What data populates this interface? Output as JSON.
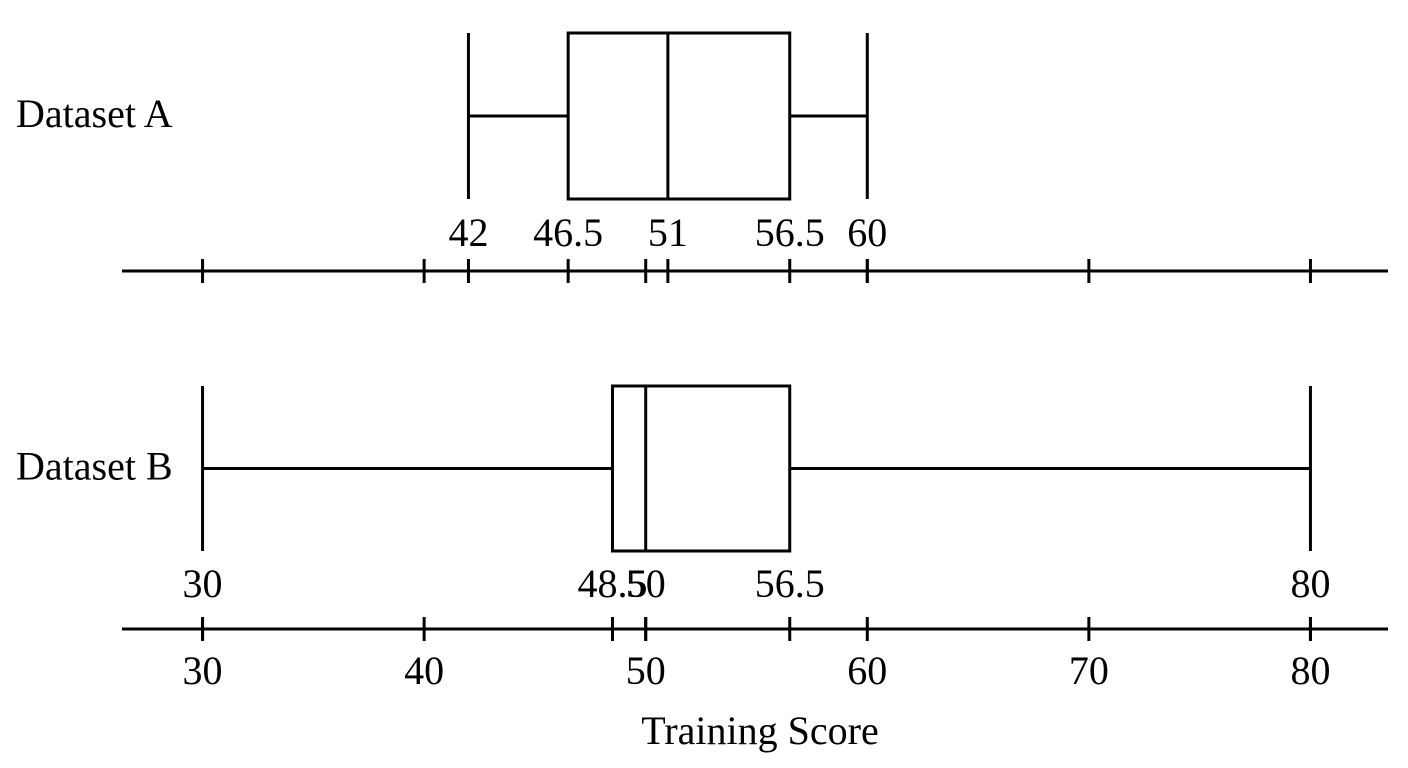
{
  "chart_data": {
    "type": "box",
    "xlabel": "Training Score",
    "xlim": [
      26.5,
      83.5
    ],
    "xticks": [
      30,
      40,
      50,
      60,
      70,
      80
    ],
    "color": "#000000",
    "series": [
      {
        "name": "Dataset A",
        "min": 42,
        "q1": 46.5,
        "median": 51,
        "q3": 56.5,
        "max": 60
      },
      {
        "name": "Dataset B",
        "min": 30,
        "q1": 48.5,
        "median": 50,
        "q3": 56.5,
        "max": 80
      }
    ]
  }
}
